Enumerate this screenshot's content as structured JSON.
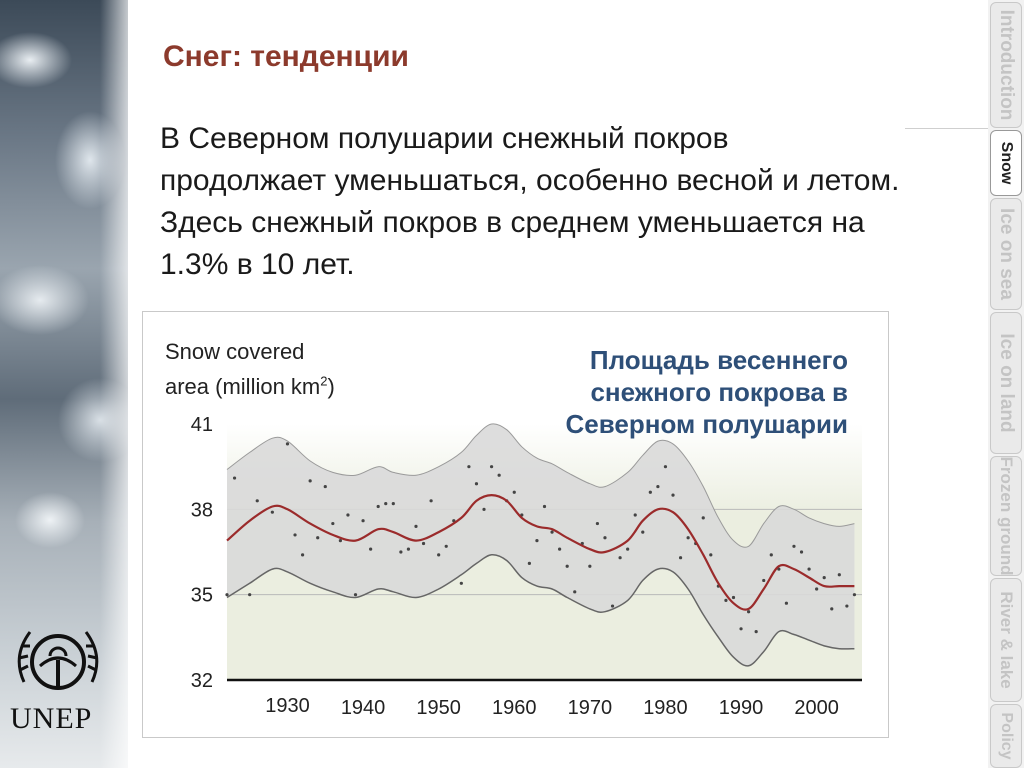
{
  "slide": {
    "title": "Снег: тенденции",
    "body": "В Северном полушарии снежный покров продолжает уменьшаться, особенно весной и летом. Здесь снежный покров в среднем уменьшается на 1.3% в 10 лет.",
    "logo_text": "UNEP"
  },
  "tabs": [
    {
      "label": "Introduction",
      "active": false
    },
    {
      "label": "Snow",
      "active": true
    },
    {
      "label": "Ice on sea",
      "active": false
    },
    {
      "label": "Ice on land",
      "active": false
    },
    {
      "label": "Frozen ground",
      "active": false
    },
    {
      "label": "River & lake",
      "active": false
    },
    {
      "label": "Policy",
      "active": false
    }
  ],
  "chart_data": {
    "type": "line",
    "title": "Площадь весеннего снежного покрова в Северном полушарии",
    "ylabel_main": "Snow covered",
    "ylabel_unit_prefix": "area (million km",
    "ylabel_unit_sup": "2",
    "ylabel_unit_suffix": ")",
    "yticks": [
      "41",
      "38",
      "35",
      "32"
    ],
    "xticks": [
      "1930",
      "1940",
      "1950",
      "1960",
      "1970",
      "1980",
      "1990",
      "2000"
    ],
    "xlim": [
      1922,
      2006
    ],
    "ylim": [
      32,
      41
    ],
    "gridlines": [
      38,
      35
    ],
    "colors": {
      "trend": "#9b2b2b",
      "band": "#d9d9d9",
      "band_edge": "#666666",
      "points": "#444444",
      "plot_bg": "#ebeee0"
    },
    "trend": [
      [
        1922,
        36.9
      ],
      [
        1925,
        37.6
      ],
      [
        1928,
        38.1
      ],
      [
        1930,
        38.0
      ],
      [
        1933,
        37.5
      ],
      [
        1936,
        37.1
      ],
      [
        1939,
        36.9
      ],
      [
        1942,
        37.3
      ],
      [
        1944,
        37.2
      ],
      [
        1947,
        36.9
      ],
      [
        1950,
        37.2
      ],
      [
        1953,
        37.7
      ],
      [
        1955,
        38.3
      ],
      [
        1957,
        38.5
      ],
      [
        1959,
        38.3
      ],
      [
        1961,
        37.7
      ],
      [
        1963,
        37.4
      ],
      [
        1965,
        37.3
      ],
      [
        1967,
        37.0
      ],
      [
        1970,
        36.6
      ],
      [
        1972,
        36.5
      ],
      [
        1975,
        36.9
      ],
      [
        1977,
        37.6
      ],
      [
        1979,
        38.0
      ],
      [
        1981,
        37.9
      ],
      [
        1983,
        37.3
      ],
      [
        1985,
        36.4
      ],
      [
        1987,
        35.4
      ],
      [
        1989,
        34.7
      ],
      [
        1991,
        34.5
      ],
      [
        1993,
        35.2
      ],
      [
        1995,
        36.0
      ],
      [
        1997,
        35.9
      ],
      [
        1999,
        35.6
      ],
      [
        2001,
        35.3
      ],
      [
        2003,
        35.3
      ],
      [
        2005,
        35.3
      ]
    ],
    "upper": [
      [
        1922,
        39.4
      ],
      [
        1925,
        40.0
      ],
      [
        1928,
        40.5
      ],
      [
        1930,
        40.4
      ],
      [
        1933,
        39.7
      ],
      [
        1936,
        39.3
      ],
      [
        1939,
        39.2
      ],
      [
        1942,
        39.5
      ],
      [
        1944,
        39.3
      ],
      [
        1947,
        39.2
      ],
      [
        1950,
        39.5
      ],
      [
        1953,
        40.0
      ],
      [
        1955,
        40.6
      ],
      [
        1957,
        41.0
      ],
      [
        1959,
        40.8
      ],
      [
        1961,
        40.2
      ],
      [
        1963,
        39.8
      ],
      [
        1965,
        39.6
      ],
      [
        1967,
        39.3
      ],
      [
        1970,
        38.9
      ],
      [
        1972,
        38.8
      ],
      [
        1975,
        39.3
      ],
      [
        1977,
        39.9
      ],
      [
        1979,
        40.4
      ],
      [
        1981,
        40.3
      ],
      [
        1983,
        39.7
      ],
      [
        1985,
        38.8
      ],
      [
        1987,
        37.7
      ],
      [
        1989,
        36.9
      ],
      [
        1991,
        36.7
      ],
      [
        1993,
        37.5
      ],
      [
        1995,
        38.1
      ],
      [
        1997,
        38.0
      ],
      [
        1999,
        37.7
      ],
      [
        2001,
        37.5
      ],
      [
        2003,
        37.4
      ],
      [
        2005,
        37.5
      ]
    ],
    "lower": [
      [
        1922,
        34.9
      ],
      [
        1925,
        35.4
      ],
      [
        1928,
        35.9
      ],
      [
        1930,
        35.8
      ],
      [
        1933,
        35.4
      ],
      [
        1936,
        35.1
      ],
      [
        1939,
        34.9
      ],
      [
        1942,
        35.2
      ],
      [
        1944,
        35.1
      ],
      [
        1947,
        34.9
      ],
      [
        1950,
        35.2
      ],
      [
        1953,
        35.7
      ],
      [
        1955,
        36.1
      ],
      [
        1957,
        36.4
      ],
      [
        1959,
        36.2
      ],
      [
        1961,
        35.6
      ],
      [
        1963,
        35.3
      ],
      [
        1965,
        35.2
      ],
      [
        1967,
        34.9
      ],
      [
        1970,
        34.5
      ],
      [
        1972,
        34.4
      ],
      [
        1975,
        34.8
      ],
      [
        1977,
        35.5
      ],
      [
        1979,
        35.9
      ],
      [
        1981,
        35.8
      ],
      [
        1983,
        35.2
      ],
      [
        1985,
        34.3
      ],
      [
        1987,
        33.5
      ],
      [
        1989,
        32.8
      ],
      [
        1991,
        32.5
      ],
      [
        1993,
        33.0
      ],
      [
        1995,
        33.7
      ],
      [
        1997,
        33.6
      ],
      [
        1999,
        33.4
      ],
      [
        2001,
        33.2
      ],
      [
        2003,
        33.1
      ],
      [
        2005,
        33.1
      ]
    ],
    "points": [
      [
        1922,
        35.0
      ],
      [
        1923,
        39.1
      ],
      [
        1925,
        35.0
      ],
      [
        1926,
        38.3
      ],
      [
        1928,
        37.9
      ],
      [
        1930,
        40.3
      ],
      [
        1931,
        37.1
      ],
      [
        1932,
        36.4
      ],
      [
        1933,
        39.0
      ],
      [
        1934,
        37.0
      ],
      [
        1935,
        38.8
      ],
      [
        1936,
        37.5
      ],
      [
        1937,
        36.9
      ],
      [
        1938,
        37.8
      ],
      [
        1939,
        35.0
      ],
      [
        1940,
        37.6
      ],
      [
        1941,
        36.6
      ],
      [
        1942,
        38.1
      ],
      [
        1943,
        38.2
      ],
      [
        1944,
        38.2
      ],
      [
        1945,
        36.5
      ],
      [
        1946,
        36.6
      ],
      [
        1947,
        37.4
      ],
      [
        1948,
        36.8
      ],
      [
        1949,
        38.3
      ],
      [
        1950,
        36.4
      ],
      [
        1951,
        36.7
      ],
      [
        1952,
        37.6
      ],
      [
        1953,
        35.4
      ],
      [
        1954,
        39.5
      ],
      [
        1955,
        38.9
      ],
      [
        1956,
        38.0
      ],
      [
        1957,
        39.5
      ],
      [
        1958,
        39.2
      ],
      [
        1959,
        38.3
      ],
      [
        1960,
        38.6
      ],
      [
        1961,
        37.8
      ],
      [
        1962,
        36.1
      ],
      [
        1963,
        36.9
      ],
      [
        1964,
        38.1
      ],
      [
        1965,
        37.2
      ],
      [
        1966,
        36.6
      ],
      [
        1967,
        36.0
      ],
      [
        1968,
        35.1
      ],
      [
        1969,
        36.8
      ],
      [
        1970,
        36.0
      ],
      [
        1971,
        37.5
      ],
      [
        1972,
        37.0
      ],
      [
        1973,
        34.6
      ],
      [
        1974,
        36.3
      ],
      [
        1975,
        36.6
      ],
      [
        1976,
        37.8
      ],
      [
        1977,
        37.2
      ],
      [
        1978,
        38.6
      ],
      [
        1979,
        38.8
      ],
      [
        1980,
        39.5
      ],
      [
        1981,
        38.5
      ],
      [
        1982,
        36.3
      ],
      [
        1983,
        37.0
      ],
      [
        1984,
        36.8
      ],
      [
        1985,
        37.7
      ],
      [
        1986,
        36.4
      ],
      [
        1987,
        35.3
      ],
      [
        1988,
        34.8
      ],
      [
        1989,
        34.9
      ],
      [
        1990,
        33.8
      ],
      [
        1991,
        34.4
      ],
      [
        1992,
        33.7
      ],
      [
        1993,
        35.5
      ],
      [
        1994,
        36.4
      ],
      [
        1995,
        35.9
      ],
      [
        1996,
        34.7
      ],
      [
        1997,
        36.7
      ],
      [
        1998,
        36.5
      ],
      [
        1999,
        35.9
      ],
      [
        2000,
        35.2
      ],
      [
        2001,
        35.6
      ],
      [
        2002,
        34.5
      ],
      [
        2003,
        35.7
      ],
      [
        2004,
        34.6
      ],
      [
        2005,
        35.0
      ]
    ]
  }
}
